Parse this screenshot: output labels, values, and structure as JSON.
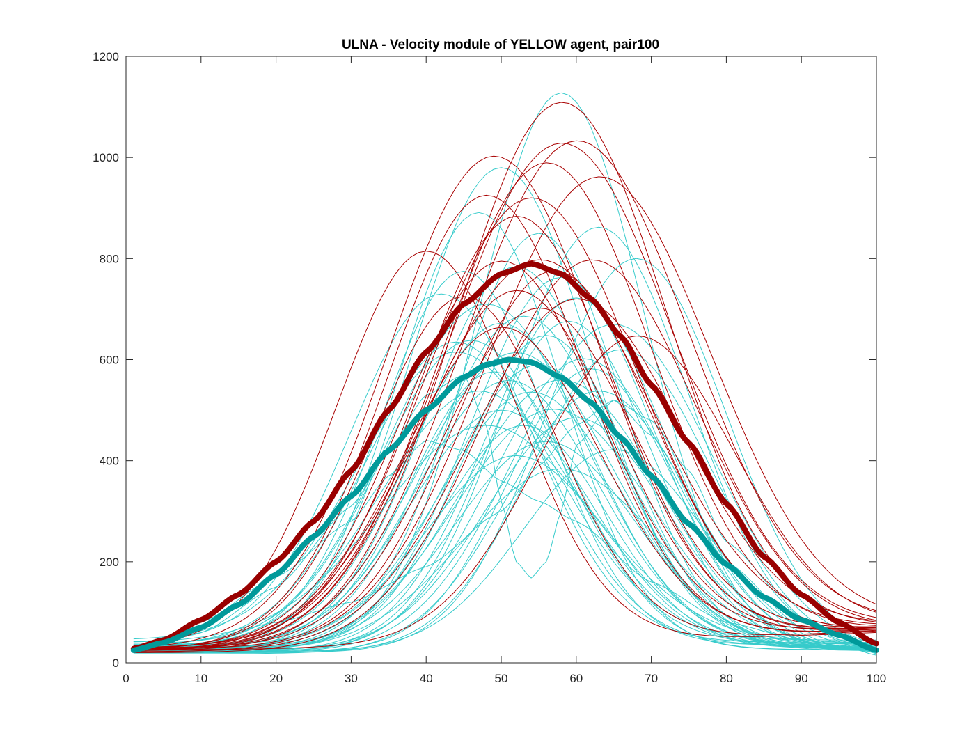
{
  "chart_data": {
    "type": "line",
    "title": "ULNA - Velocity module of YELLOW agent, pair100",
    "xlabel": "",
    "ylabel": "",
    "xlim": [
      0,
      100
    ],
    "ylim": [
      0,
      1200
    ],
    "xticks": [
      0,
      10,
      20,
      30,
      40,
      50,
      60,
      70,
      80,
      90,
      100
    ],
    "yticks": [
      0,
      200,
      400,
      600,
      800,
      1000,
      1200
    ],
    "grid": false,
    "legend": "none",
    "colors": {
      "red_group": "#a80000",
      "cyan_group": "#36cbcb",
      "red_mean": "#990000",
      "cyan_mean": "#00999a"
    },
    "series_model": "Each thin curve is sampled at x = 1..100 from base + peak * exp(-((x - center)/width)^2 / 2) + tail * (x/100)^2",
    "red_group": [
      {
        "center": 49,
        "peak": 965,
        "width": 14,
        "base": 28,
        "tail": 40
      },
      {
        "center": 58,
        "peak": 1070,
        "width": 14,
        "base": 24,
        "tail": 45
      },
      {
        "center": 58,
        "peak": 985,
        "width": 15,
        "base": 30,
        "tail": 40
      },
      {
        "center": 60,
        "peak": 990,
        "width": 15,
        "base": 25,
        "tail": 50
      },
      {
        "center": 56,
        "peak": 950,
        "width": 14,
        "base": 27,
        "tail": 40
      },
      {
        "center": 63,
        "peak": 920,
        "width": 15,
        "base": 22,
        "tail": 50
      },
      {
        "center": 54,
        "peak": 880,
        "width": 14,
        "base": 30,
        "tail": 35
      },
      {
        "center": 48,
        "peak": 890,
        "width": 13,
        "base": 26,
        "tail": 40
      },
      {
        "center": 52,
        "peak": 845,
        "width": 13,
        "base": 28,
        "tail": 40
      },
      {
        "center": 40,
        "peak": 780,
        "width": 12,
        "base": 30,
        "tail": 30
      },
      {
        "center": 55,
        "peak": 760,
        "width": 15,
        "base": 24,
        "tail": 45
      },
      {
        "center": 50,
        "peak": 755,
        "width": 13,
        "base": 30,
        "tail": 40
      },
      {
        "center": 62,
        "peak": 760,
        "width": 14,
        "base": 20,
        "tail": 45
      },
      {
        "center": 57,
        "peak": 735,
        "width": 13,
        "base": 28,
        "tail": 40
      },
      {
        "center": 52,
        "peak": 700,
        "width": 13,
        "base": 26,
        "tail": 40
      },
      {
        "center": 45,
        "peak": 690,
        "width": 12,
        "base": 28,
        "tail": 35
      },
      {
        "center": 60,
        "peak": 680,
        "width": 14,
        "base": 22,
        "tail": 50
      },
      {
        "center": 55,
        "peak": 660,
        "width": 13,
        "base": 30,
        "tail": 40
      },
      {
        "center": 68,
        "peak": 600,
        "width": 13,
        "base": 26,
        "tail": 45
      },
      {
        "center": 50,
        "peak": 630,
        "width": 13,
        "base": 24,
        "tail": 40
      }
    ],
    "cyan_group": [
      {
        "center": 58,
        "peak": 1100,
        "width": 11,
        "base": 28,
        "tail": 0
      },
      {
        "center": 50,
        "peak": 950,
        "width": 12,
        "base": 30,
        "tail": 0
      },
      {
        "center": 47,
        "peak": 865,
        "width": 11,
        "base": 26,
        "tail": 0
      },
      {
        "center": 63,
        "peak": 840,
        "width": 12,
        "base": 22,
        "tail": 0
      },
      {
        "center": 68,
        "peak": 780,
        "width": 12,
        "base": 20,
        "tail": 0
      },
      {
        "center": 55,
        "peak": 820,
        "width": 11,
        "base": 30,
        "tail": 0
      },
      {
        "center": 52,
        "peak": 760,
        "width": 12,
        "base": 24,
        "tail": 0
      },
      {
        "center": 45,
        "peak": 740,
        "width": 11,
        "base": 35,
        "tail": 0
      },
      {
        "center": 58,
        "peak": 735,
        "width": 12,
        "base": 28,
        "tail": 0
      },
      {
        "center": 42,
        "peak": 690,
        "width": 12,
        "base": 40,
        "tail": 0
      },
      {
        "center": 60,
        "peak": 700,
        "width": 12,
        "base": 22,
        "tail": 0
      },
      {
        "center": 48,
        "peak": 680,
        "width": 13,
        "base": 30,
        "tail": 0
      },
      {
        "center": 53,
        "peak": 660,
        "width": 12,
        "base": 26,
        "tail": 0
      },
      {
        "center": 65,
        "peak": 650,
        "width": 13,
        "base": 20,
        "tail": 0
      },
      {
        "center": 50,
        "peak": 640,
        "width": 12,
        "base": 32,
        "tail": 0
      },
      {
        "center": 56,
        "peak": 620,
        "width": 11,
        "base": 28,
        "tail": 0
      },
      {
        "center": 46,
        "peak": 600,
        "width": 12,
        "base": 38,
        "tail": 0
      },
      {
        "center": 52,
        "peak": 590,
        "width": 13,
        "base": 24,
        "tail": 0
      },
      {
        "center": 61,
        "peak": 580,
        "width": 12,
        "base": 22,
        "tail": 0
      },
      {
        "center": 44,
        "peak": 570,
        "width": 13,
        "base": 45,
        "tail": 0
      },
      {
        "center": 55,
        "peak": 560,
        "width": 12,
        "base": 30,
        "tail": 0
      },
      {
        "center": 49,
        "peak": 550,
        "width": 11,
        "base": 26,
        "tail": 0
      },
      {
        "center": 58,
        "peak": 540,
        "width": 13,
        "base": 20,
        "tail": 0
      },
      {
        "center": 51,
        "peak": 525,
        "width": 12,
        "base": 34,
        "tail": 0
      },
      {
        "center": 63,
        "peak": 520,
        "width": 12,
        "base": 18,
        "tail": 0
      },
      {
        "center": 47,
        "peak": 510,
        "width": 13,
        "base": 28,
        "tail": 0
      },
      {
        "center": 54,
        "peak": 500,
        "width": 12,
        "base": 36,
        "tail": 0
      },
      {
        "center": 57,
        "peak": 480,
        "width": 13,
        "base": 22,
        "tail": 0
      },
      {
        "center": 50,
        "peak": 470,
        "width": 12,
        "base": 30,
        "tail": 0
      },
      {
        "center": 60,
        "peak": 460,
        "width": 12,
        "base": 25,
        "tail": 0
      },
      {
        "center": 53,
        "peak": 440,
        "width": 11,
        "base": 30,
        "tail": 0
      },
      {
        "center": 48,
        "peak": 430,
        "width": 14,
        "base": 40,
        "tail": 0
      },
      {
        "center": 56,
        "peak": 410,
        "width": 12,
        "base": 28,
        "tail": 0
      },
      {
        "center": 65,
        "peak": 400,
        "width": 12,
        "base": 22,
        "tail": 0
      },
      {
        "center": 52,
        "peak": 380,
        "width": 12,
        "base": 30,
        "tail": 0
      },
      {
        "center": 58,
        "peak": 360,
        "width": 13,
        "base": 24,
        "tail": 0
      },
      {
        "center": 44,
        "peak": 600,
        "width": 12,
        "base": 35,
        "tail": 0
      },
      {
        "center": 59,
        "peak": 650,
        "width": 11,
        "base": 26,
        "tail": 0
      },
      {
        "center": 66,
        "peak": 600,
        "width": 12,
        "base": 20,
        "tail": 0
      },
      {
        "center": 62,
        "peak": 560,
        "width": 11,
        "base": 22,
        "tail": 0
      }
    ],
    "cyan_special": [
      {
        "name": "dip",
        "x": [
          1,
          10,
          20,
          30,
          35,
          40,
          45,
          48,
          50,
          52,
          54,
          56,
          58,
          60,
          65,
          70,
          80,
          90,
          100
        ],
        "y": [
          20,
          60,
          150,
          310,
          420,
          530,
          570,
          470,
          320,
          200,
          168,
          200,
          300,
          430,
          520,
          450,
          200,
          70,
          15
        ]
      },
      {
        "name": "early",
        "x": [
          1,
          10,
          20,
          30,
          35,
          40,
          45,
          50,
          55,
          60,
          70,
          80,
          90,
          100
        ],
        "y": [
          22,
          80,
          170,
          280,
          370,
          440,
          420,
          360,
          320,
          280,
          160,
          80,
          45,
          20
        ]
      },
      {
        "name": "late",
        "x": [
          1,
          10,
          20,
          30,
          40,
          50,
          55,
          60,
          65,
          70,
          75,
          80,
          90,
          100
        ],
        "y": [
          20,
          45,
          80,
          120,
          190,
          300,
          390,
          470,
          520,
          480,
          380,
          240,
          90,
          18
        ]
      }
    ],
    "red_mean": {
      "name": "",
      "x": [
        1,
        5,
        10,
        15,
        20,
        25,
        30,
        35,
        40,
        45,
        50,
        54,
        58,
        62,
        66,
        70,
        75,
        80,
        85,
        90,
        95,
        100
      ],
      "y": [
        28,
        45,
        85,
        135,
        200,
        280,
        380,
        500,
        615,
        710,
        770,
        790,
        770,
        720,
        645,
        550,
        435,
        315,
        210,
        135,
        80,
        38
      ]
    },
    "cyan_mean": {
      "name": "",
      "x": [
        1,
        5,
        10,
        15,
        20,
        25,
        30,
        35,
        40,
        45,
        48,
        51,
        54,
        58,
        62,
        66,
        70,
        75,
        80,
        85,
        90,
        95,
        100
      ],
      "y": [
        25,
        40,
        70,
        115,
        175,
        250,
        330,
        420,
        500,
        565,
        590,
        600,
        595,
        565,
        515,
        445,
        370,
        275,
        195,
        130,
        85,
        55,
        25
      ]
    }
  }
}
